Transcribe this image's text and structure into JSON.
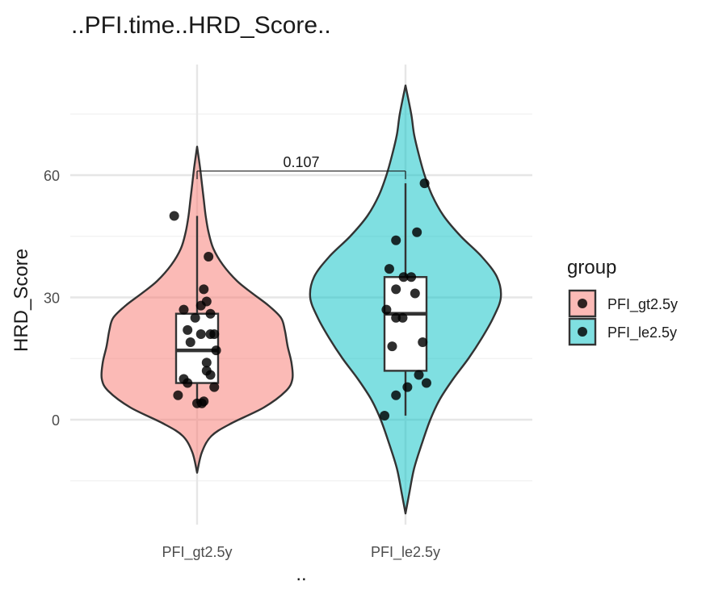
{
  "chart_data": {
    "type": "violin",
    "title": "..PFI.time..HRD_Score..",
    "xlabel": "..",
    "ylabel": "HRD_Score",
    "categories": [
      "PFI_gt2.5y",
      "PFI_le2.5y"
    ],
    "ylim": [
      -20,
      80
    ],
    "yticks": [
      0,
      30,
      60
    ],
    "grid": true,
    "legend": {
      "title": "group",
      "position": "right",
      "entries": [
        {
          "label": "PFI_gt2.5y",
          "color": "#F8766D"
        },
        {
          "label": "PFI_le2.5y",
          "color": "#00BFC4"
        }
      ]
    },
    "groups": [
      {
        "name": "PFI_gt2.5y",
        "color": "#F8766D",
        "box": {
          "min": 4,
          "q1": 9,
          "median": 17,
          "q3": 26,
          "max": 50
        },
        "violin_range": [
          -13,
          67
        ],
        "violin_profile": [
          [
            -13,
            0.0
          ],
          [
            -8,
            0.05
          ],
          [
            -4,
            0.15
          ],
          [
            -1,
            0.35
          ],
          [
            3,
            0.7
          ],
          [
            7,
            0.93
          ],
          [
            10,
            1.0
          ],
          [
            14,
            0.99
          ],
          [
            18,
            0.95
          ],
          [
            22,
            0.92
          ],
          [
            25,
            0.88
          ],
          [
            28,
            0.75
          ],
          [
            31,
            0.58
          ],
          [
            34,
            0.42
          ],
          [
            38,
            0.27
          ],
          [
            42,
            0.17
          ],
          [
            46,
            0.12
          ],
          [
            50,
            0.09
          ],
          [
            54,
            0.07
          ],
          [
            58,
            0.05
          ],
          [
            62,
            0.03
          ],
          [
            67,
            0.0
          ]
        ],
        "points": [
          [
            0.0,
            4
          ],
          [
            0.05,
            4
          ],
          [
            -0.2,
            6
          ],
          [
            0.07,
            4.5
          ],
          [
            -0.1,
            9
          ],
          [
            0.1,
            12
          ],
          [
            -0.14,
            10
          ],
          [
            0.14,
            11
          ],
          [
            0.18,
            8
          ],
          [
            0.2,
            17
          ],
          [
            0.1,
            14
          ],
          [
            -0.07,
            19
          ],
          [
            0.14,
            21
          ],
          [
            0.04,
            21
          ],
          [
            0.18,
            21
          ],
          [
            -0.1,
            22
          ],
          [
            -0.02,
            25
          ],
          [
            0.14,
            26
          ],
          [
            -0.14,
            27
          ],
          [
            0.04,
            28
          ],
          [
            0.1,
            29
          ],
          [
            0.07,
            32
          ],
          [
            0.12,
            40
          ],
          [
            -0.24,
            50
          ]
        ]
      },
      {
        "name": "PFI_le2.5y",
        "color": "#00BFC4",
        "box": {
          "min": 1,
          "q1": 12,
          "median": 26,
          "q3": 35,
          "max": 58
        },
        "violin_range": [
          -23,
          82
        ],
        "violin_profile": [
          [
            -23,
            0.0
          ],
          [
            -18,
            0.04
          ],
          [
            -12,
            0.09
          ],
          [
            -6,
            0.17
          ],
          [
            0,
            0.26
          ],
          [
            5,
            0.36
          ],
          [
            10,
            0.5
          ],
          [
            15,
            0.66
          ],
          [
            20,
            0.8
          ],
          [
            25,
            0.92
          ],
          [
            30,
            1.0
          ],
          [
            35,
            0.96
          ],
          [
            40,
            0.8
          ],
          [
            45,
            0.58
          ],
          [
            50,
            0.4
          ],
          [
            55,
            0.28
          ],
          [
            60,
            0.2
          ],
          [
            65,
            0.14
          ],
          [
            70,
            0.09
          ],
          [
            75,
            0.06
          ],
          [
            82,
            0.0
          ]
        ],
        "points": [
          [
            -0.22,
            1
          ],
          [
            -0.1,
            6
          ],
          [
            0.02,
            8
          ],
          [
            0.14,
            11
          ],
          [
            0.22,
            9
          ],
          [
            -0.14,
            18
          ],
          [
            0.18,
            19
          ],
          [
            -0.2,
            27
          ],
          [
            -0.1,
            25
          ],
          [
            -0.03,
            25
          ],
          [
            -0.1,
            32
          ],
          [
            0.1,
            31
          ],
          [
            -0.17,
            37
          ],
          [
            -0.02,
            35
          ],
          [
            0.06,
            35
          ],
          [
            -0.1,
            44
          ],
          [
            0.12,
            46
          ],
          [
            0.2,
            58
          ]
        ]
      }
    ],
    "comparison": {
      "groups": [
        "PFI_gt2.5y",
        "PFI_le2.5y"
      ],
      "p_value": "0.107",
      "y": 61
    }
  }
}
